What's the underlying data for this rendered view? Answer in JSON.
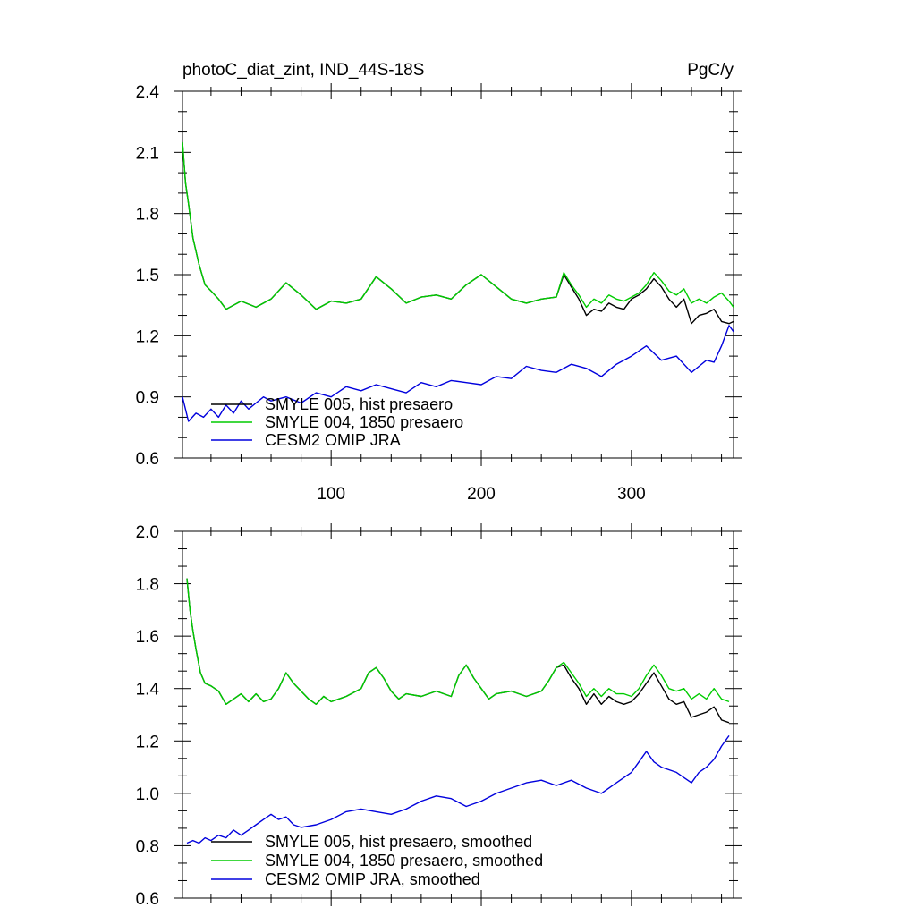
{
  "chart_data": [
    {
      "type": "line",
      "title": "photoC_diat_zint, IND_44S-18S",
      "units": "PgC/y",
      "xlim": [
        1,
        368
      ],
      "ylim": [
        0.6,
        2.4
      ],
      "xticks": [
        100,
        200,
        300
      ],
      "yticks": [
        0.6,
        0.9,
        1.2,
        1.5,
        1.8,
        2.1,
        2.4
      ],
      "ytick_labels": [
        "0.6",
        "0.9",
        "1.2",
        "1.5",
        "1.8",
        "2.1",
        "2.4"
      ],
      "legend_placement": "bottom-left",
      "series": [
        {
          "name": "SMYLE 005, hist presaero",
          "color": "#000000",
          "x": [
            1,
            3,
            5,
            8,
            12,
            16,
            20,
            25,
            30,
            40,
            50,
            60,
            70,
            80,
            90,
            100,
            110,
            120,
            130,
            140,
            150,
            160,
            170,
            180,
            190,
            200,
            210,
            220,
            230,
            240,
            250,
            255,
            260,
            265,
            270,
            275,
            280,
            285,
            290,
            295,
            300,
            305,
            310,
            315,
            320,
            325,
            330,
            335,
            340,
            345,
            350,
            355,
            360,
            365,
            368
          ],
          "y": [
            2.15,
            1.95,
            1.85,
            1.68,
            1.55,
            1.45,
            1.42,
            1.38,
            1.33,
            1.37,
            1.34,
            1.38,
            1.46,
            1.4,
            1.33,
            1.37,
            1.36,
            1.38,
            1.49,
            1.43,
            1.36,
            1.39,
            1.4,
            1.38,
            1.45,
            1.5,
            1.44,
            1.38,
            1.36,
            1.38,
            1.39,
            1.5,
            1.44,
            1.38,
            1.3,
            1.33,
            1.32,
            1.36,
            1.34,
            1.33,
            1.38,
            1.4,
            1.43,
            1.48,
            1.44,
            1.38,
            1.34,
            1.38,
            1.26,
            1.3,
            1.31,
            1.33,
            1.27,
            1.26,
            1.27
          ]
        },
        {
          "name": "SMYLE 004, 1850 presaero",
          "color": "#00cc00",
          "x": [
            1,
            3,
            5,
            8,
            12,
            16,
            20,
            25,
            30,
            40,
            50,
            60,
            70,
            80,
            90,
            100,
            110,
            120,
            130,
            140,
            150,
            160,
            170,
            180,
            190,
            200,
            210,
            220,
            230,
            240,
            250,
            255,
            260,
            265,
            270,
            275,
            280,
            285,
            290,
            295,
            300,
            305,
            310,
            315,
            320,
            325,
            330,
            335,
            340,
            345,
            350,
            355,
            360,
            365,
            368
          ],
          "y": [
            2.15,
            1.95,
            1.85,
            1.68,
            1.55,
            1.45,
            1.42,
            1.38,
            1.33,
            1.37,
            1.34,
            1.38,
            1.46,
            1.4,
            1.33,
            1.37,
            1.36,
            1.38,
            1.49,
            1.43,
            1.36,
            1.39,
            1.4,
            1.38,
            1.45,
            1.5,
            1.44,
            1.38,
            1.36,
            1.38,
            1.39,
            1.51,
            1.45,
            1.4,
            1.34,
            1.38,
            1.36,
            1.4,
            1.38,
            1.37,
            1.39,
            1.41,
            1.45,
            1.51,
            1.47,
            1.42,
            1.4,
            1.43,
            1.36,
            1.38,
            1.36,
            1.39,
            1.41,
            1.37,
            1.34
          ]
        },
        {
          "name": "CESM2 OMIP JRA",
          "color": "#0000dd",
          "x": [
            1,
            5,
            10,
            15,
            20,
            25,
            30,
            35,
            40,
            45,
            50,
            55,
            60,
            70,
            80,
            90,
            100,
            110,
            120,
            130,
            140,
            150,
            160,
            170,
            180,
            190,
            200,
            210,
            220,
            230,
            240,
            250,
            260,
            270,
            280,
            290,
            300,
            310,
            320,
            330,
            335,
            340,
            345,
            350,
            355,
            360,
            365,
            368
          ],
          "y": [
            0.9,
            0.78,
            0.82,
            0.8,
            0.84,
            0.8,
            0.86,
            0.82,
            0.88,
            0.84,
            0.87,
            0.9,
            0.88,
            0.9,
            0.87,
            0.92,
            0.9,
            0.95,
            0.93,
            0.96,
            0.94,
            0.92,
            0.97,
            0.95,
            0.98,
            0.97,
            0.96,
            1.0,
            0.99,
            1.05,
            1.03,
            1.02,
            1.06,
            1.04,
            1.0,
            1.06,
            1.1,
            1.15,
            1.08,
            1.1,
            1.06,
            1.02,
            1.05,
            1.08,
            1.07,
            1.15,
            1.25,
            1.22
          ]
        }
      ]
    },
    {
      "type": "line",
      "xlim": [
        1,
        368
      ],
      "ylim": [
        0.6,
        2.0
      ],
      "xticks": [
        100,
        200,
        300
      ],
      "yticks": [
        0.6,
        0.8,
        1.0,
        1.2,
        1.4,
        1.6,
        1.8,
        2.0
      ],
      "ytick_labels": [
        "0.6",
        "0.8",
        "1.0",
        "1.2",
        "1.4",
        "1.6",
        "1.8",
        "2.0"
      ],
      "legend_placement": "bottom-left",
      "series": [
        {
          "name": "SMYLE 005, hist presaero, smoothed",
          "color": "#000000",
          "x": [
            4,
            6,
            8,
            10,
            13,
            16,
            20,
            25,
            30,
            35,
            40,
            45,
            50,
            55,
            60,
            65,
            70,
            75,
            80,
            85,
            90,
            95,
            100,
            110,
            120,
            125,
            130,
            135,
            140,
            145,
            150,
            160,
            170,
            180,
            185,
            190,
            195,
            200,
            205,
            210,
            220,
            230,
            240,
            245,
            250,
            255,
            260,
            265,
            270,
            275,
            280,
            285,
            290,
            295,
            300,
            305,
            310,
            315,
            320,
            325,
            330,
            335,
            340,
            345,
            350,
            355,
            360,
            365
          ],
          "y": [
            1.82,
            1.7,
            1.62,
            1.55,
            1.46,
            1.42,
            1.41,
            1.39,
            1.34,
            1.36,
            1.38,
            1.35,
            1.38,
            1.35,
            1.36,
            1.4,
            1.46,
            1.42,
            1.39,
            1.36,
            1.34,
            1.37,
            1.35,
            1.37,
            1.4,
            1.46,
            1.48,
            1.44,
            1.39,
            1.36,
            1.38,
            1.37,
            1.39,
            1.37,
            1.45,
            1.49,
            1.44,
            1.4,
            1.36,
            1.38,
            1.39,
            1.37,
            1.39,
            1.43,
            1.48,
            1.49,
            1.44,
            1.4,
            1.34,
            1.38,
            1.34,
            1.37,
            1.35,
            1.34,
            1.35,
            1.38,
            1.42,
            1.46,
            1.41,
            1.36,
            1.34,
            1.35,
            1.29,
            1.3,
            1.31,
            1.33,
            1.28,
            1.27
          ]
        },
        {
          "name": "SMYLE 004, 1850 presaero, smoothed",
          "color": "#00cc00",
          "x": [
            4,
            6,
            8,
            10,
            13,
            16,
            20,
            25,
            30,
            35,
            40,
            45,
            50,
            55,
            60,
            65,
            70,
            75,
            80,
            85,
            90,
            95,
            100,
            110,
            120,
            125,
            130,
            135,
            140,
            145,
            150,
            160,
            170,
            180,
            185,
            190,
            195,
            200,
            205,
            210,
            220,
            230,
            240,
            245,
            250,
            255,
            260,
            265,
            270,
            275,
            280,
            285,
            290,
            295,
            300,
            305,
            310,
            315,
            320,
            325,
            330,
            335,
            340,
            345,
            350,
            355,
            360,
            365
          ],
          "y": [
            1.82,
            1.7,
            1.62,
            1.55,
            1.46,
            1.42,
            1.41,
            1.39,
            1.34,
            1.36,
            1.38,
            1.35,
            1.38,
            1.35,
            1.36,
            1.4,
            1.46,
            1.42,
            1.39,
            1.36,
            1.34,
            1.37,
            1.35,
            1.37,
            1.4,
            1.46,
            1.48,
            1.44,
            1.39,
            1.36,
            1.38,
            1.37,
            1.39,
            1.37,
            1.45,
            1.49,
            1.44,
            1.4,
            1.36,
            1.38,
            1.39,
            1.37,
            1.39,
            1.43,
            1.48,
            1.5,
            1.46,
            1.42,
            1.37,
            1.4,
            1.37,
            1.4,
            1.38,
            1.38,
            1.37,
            1.4,
            1.45,
            1.49,
            1.45,
            1.4,
            1.39,
            1.4,
            1.36,
            1.38,
            1.36,
            1.4,
            1.36,
            1.35
          ]
        },
        {
          "name": "CESM2 OMIP JRA, smoothed",
          "color": "#0000dd",
          "x": [
            4,
            8,
            12,
            16,
            20,
            25,
            30,
            35,
            40,
            45,
            50,
            55,
            60,
            65,
            70,
            75,
            80,
            90,
            100,
            110,
            120,
            130,
            140,
            150,
            160,
            170,
            180,
            190,
            200,
            210,
            220,
            230,
            240,
            250,
            260,
            270,
            280,
            290,
            300,
            305,
            310,
            315,
            320,
            325,
            330,
            335,
            340,
            345,
            350,
            355,
            360,
            365
          ],
          "y": [
            0.81,
            0.82,
            0.81,
            0.83,
            0.82,
            0.84,
            0.83,
            0.86,
            0.84,
            0.86,
            0.88,
            0.9,
            0.92,
            0.9,
            0.91,
            0.88,
            0.87,
            0.88,
            0.9,
            0.93,
            0.94,
            0.93,
            0.92,
            0.94,
            0.97,
            0.99,
            0.98,
            0.95,
            0.97,
            1.0,
            1.02,
            1.04,
            1.05,
            1.03,
            1.05,
            1.02,
            1.0,
            1.04,
            1.08,
            1.12,
            1.16,
            1.12,
            1.1,
            1.09,
            1.08,
            1.06,
            1.04,
            1.08,
            1.1,
            1.13,
            1.18,
            1.22
          ]
        }
      ]
    }
  ]
}
